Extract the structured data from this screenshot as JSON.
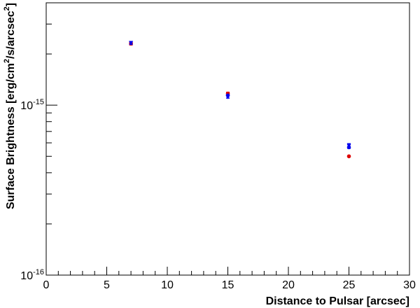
{
  "chart_data": {
    "type": "scatter",
    "xlabel": "Distance to Pulsar [arcsec]",
    "ylabel": {
      "prefix": "Surface Brightness [erg/cm",
      "sup1": "2",
      "mid": "/s/arcsec",
      "sup2": "2",
      "suffix": "]"
    },
    "xlim": [
      0,
      30
    ],
    "ylim": [
      1e-16,
      4e-15
    ],
    "y_scale": "log",
    "x_ticks": [
      {
        "value": 0,
        "label": "0"
      },
      {
        "value": 5,
        "label": "5"
      },
      {
        "value": 10,
        "label": "10"
      },
      {
        "value": 15,
        "label": "15"
      },
      {
        "value": 20,
        "label": "20"
      },
      {
        "value": 25,
        "label": "25"
      },
      {
        "value": 30,
        "label": "30"
      }
    ],
    "y_ticks": [
      {
        "value": 1e-16,
        "base": "10",
        "exp": "-16"
      },
      {
        "value": 1e-15,
        "base": "10",
        "exp": "-15"
      }
    ],
    "grid": false,
    "series": [
      {
        "marker": "circle",
        "color": "#dd0000",
        "points": [
          {
            "x": 7,
            "y": 2.3e-15,
            "err": 4e-17
          },
          {
            "x": 15,
            "y": 1.17e-15,
            "err": 2e-17
          },
          {
            "x": 25,
            "y": 5e-16,
            "err": 0.0
          }
        ]
      },
      {
        "marker": "star",
        "color": "#0000ee",
        "points": [
          {
            "x": 7,
            "y": 2.32e-15,
            "err": 4e-17
          },
          {
            "x": 15,
            "y": 1.12e-15,
            "err": 2e-17
          },
          {
            "x": 25,
            "y": 5.75e-16,
            "err": 1.8e-17
          }
        ]
      },
      {
        "marker": "circle",
        "color": "#0000ee",
        "points": [
          {
            "x": 15,
            "y": 1.14e-15,
            "err": 0.0
          },
          {
            "x": 25,
            "y": 5.65e-16,
            "err": 0.0
          }
        ]
      }
    ]
  }
}
